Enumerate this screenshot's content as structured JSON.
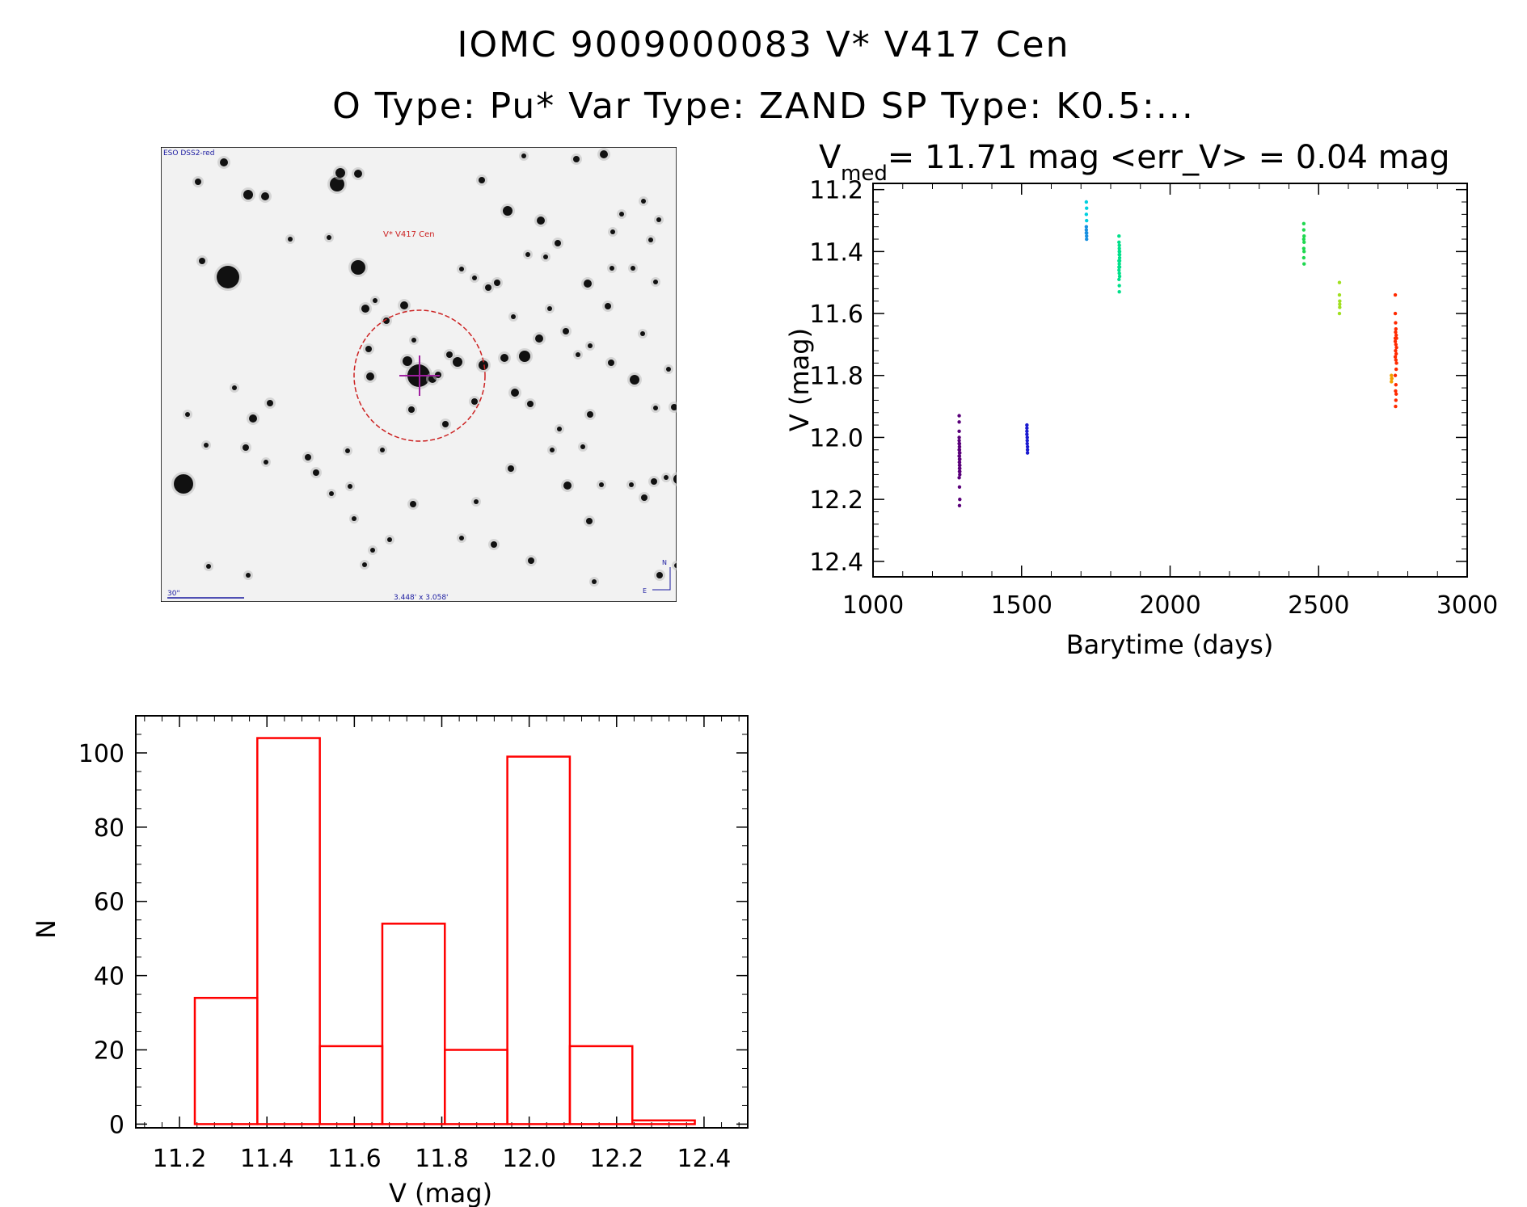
{
  "header": {
    "title_line1": "IOMC 9009000083    V* V417 Cen",
    "title_line2": "O Type: Pu*  Var Type: ZAND  SP Type: K0.5:..."
  },
  "sky_image": {
    "survey_label": "ESO DSS2-red",
    "target_label": "V* V417 Cen",
    "scale_label": "30\"",
    "fov_label": "3.448' x 3.058'",
    "north_label": "N",
    "east_label": "E",
    "circle_color": "#cc2222",
    "crosshair_color": "#a020a0",
    "label_color": "#1a1aa0"
  },
  "colors": {
    "hist_bar": "#ff0000",
    "axis": "#000000"
  },
  "chart_data": [
    {
      "type": "scatter",
      "title_parts": {
        "v": "V",
        "sub": "med",
        "rest": " = 11.71 mag <err_V> = 0.04 mag"
      },
      "xlabel": "Barytime (days)",
      "ylabel": "V (mag)",
      "xlim": [
        1000,
        3000
      ],
      "ylim": [
        12.45,
        11.18
      ],
      "xticks": [
        1000,
        1500,
        2000,
        2500,
        3000
      ],
      "yticks": [
        11.2,
        11.4,
        11.6,
        11.8,
        12.0,
        12.2,
        12.4
      ],
      "ytick_labels": [
        "11.2",
        "11.4",
        "11.6",
        "11.8",
        "12.0",
        "12.2",
        "12.4"
      ],
      "series": [
        {
          "color": "#5a007a",
          "x": [
            1290,
            1290,
            1290,
            1290,
            1290,
            1291,
            1291,
            1291,
            1291,
            1291,
            1291,
            1292,
            1292,
            1292,
            1292,
            1290,
            1291,
            1292,
            1290,
            1291,
            1291,
            1292,
            1290,
            1291,
            1291,
            1291,
            1290,
            1291,
            1292,
            1291
          ],
          "y": [
            11.93,
            11.95,
            11.98,
            12.0,
            12.02,
            12.03,
            12.04,
            12.05,
            12.06,
            12.07,
            12.08,
            12.09,
            12.1,
            12.11,
            12.12,
            12.01,
            12.03,
            12.05,
            12.06,
            12.08,
            12.1,
            12.07,
            12.04,
            12.02,
            12.09,
            12.11,
            12.13,
            12.16,
            12.2,
            12.22
          ]
        },
        {
          "color": "#1a1ad0",
          "x": [
            1518,
            1518,
            1518,
            1519,
            1519,
            1519,
            1520,
            1520,
            1520,
            1518
          ],
          "y": [
            11.96,
            11.97,
            11.99,
            12.0,
            12.01,
            12.02,
            12.03,
            12.04,
            12.05,
            11.98
          ]
        },
        {
          "color": "#1890e0",
          "x": [
            1718,
            1718,
            1719,
            1719,
            1718,
            1719
          ],
          "y": [
            11.33,
            11.34,
            11.35,
            11.36,
            11.32,
            11.34
          ]
        },
        {
          "color": "#00d0e0",
          "x": [
            1718,
            1719,
            1718,
            1719
          ],
          "y": [
            11.24,
            11.26,
            11.28,
            11.3
          ]
        },
        {
          "color": "#00e08a",
          "x": [
            1828,
            1828,
            1829,
            1829,
            1830,
            1830,
            1828,
            1829,
            1830,
            1828,
            1829,
            1830,
            1828,
            1829,
            1830,
            1829,
            1828,
            1830,
            1829,
            1829
          ],
          "y": [
            11.35,
            11.37,
            11.39,
            11.4,
            11.41,
            11.42,
            11.43,
            11.44,
            11.45,
            11.46,
            11.47,
            11.48,
            11.49,
            11.41,
            11.43,
            11.38,
            11.45,
            11.4,
            11.51,
            11.53
          ]
        },
        {
          "color": "#20d850",
          "x": [
            2450,
            2450,
            2451,
            2451,
            2450,
            2451,
            2450,
            2451,
            2450
          ],
          "y": [
            11.31,
            11.33,
            11.35,
            11.37,
            11.39,
            11.4,
            11.42,
            11.44,
            11.36
          ]
        },
        {
          "color": "#a0e020",
          "x": [
            2570,
            2570,
            2571,
            2571,
            2570,
            2571
          ],
          "y": [
            11.5,
            11.54,
            11.56,
            11.58,
            11.6,
            11.57
          ]
        },
        {
          "color": "#ff2a00",
          "x": [
            2758,
            2758,
            2759,
            2760,
            2761,
            2762,
            2758,
            2760,
            2762,
            2759,
            2761,
            2758,
            2760,
            2762,
            2759,
            2761,
            2758,
            2760,
            2759,
            2761,
            2760,
            2759,
            2758
          ],
          "y": [
            11.54,
            11.6,
            11.63,
            11.65,
            11.67,
            11.68,
            11.69,
            11.7,
            11.71,
            11.72,
            11.73,
            11.74,
            11.75,
            11.76,
            11.66,
            11.78,
            11.8,
            11.83,
            11.85,
            11.86,
            11.88,
            11.9,
            11.68
          ]
        },
        {
          "color": "#f0a000",
          "x": [
            2745,
            2746,
            2745,
            2746
          ],
          "y": [
            11.8,
            11.81,
            11.82,
            11.81
          ]
        }
      ]
    },
    {
      "type": "bar",
      "xlabel": "V (mag)",
      "ylabel": "N",
      "xlim": [
        11.1,
        12.5
      ],
      "ylim": [
        -1,
        110
      ],
      "xticks": [
        "11.2",
        "11.4",
        "11.6",
        "11.8",
        "12.0",
        "12.2",
        "12.4"
      ],
      "yticks": [
        "0",
        "20",
        "40",
        "60",
        "80",
        "100"
      ],
      "bin_edges": [
        11.235,
        11.378,
        11.521,
        11.664,
        11.807,
        11.95,
        12.093,
        12.236,
        12.379
      ],
      "values": [
        34,
        104,
        21,
        54,
        20,
        99,
        21,
        1
      ]
    }
  ]
}
